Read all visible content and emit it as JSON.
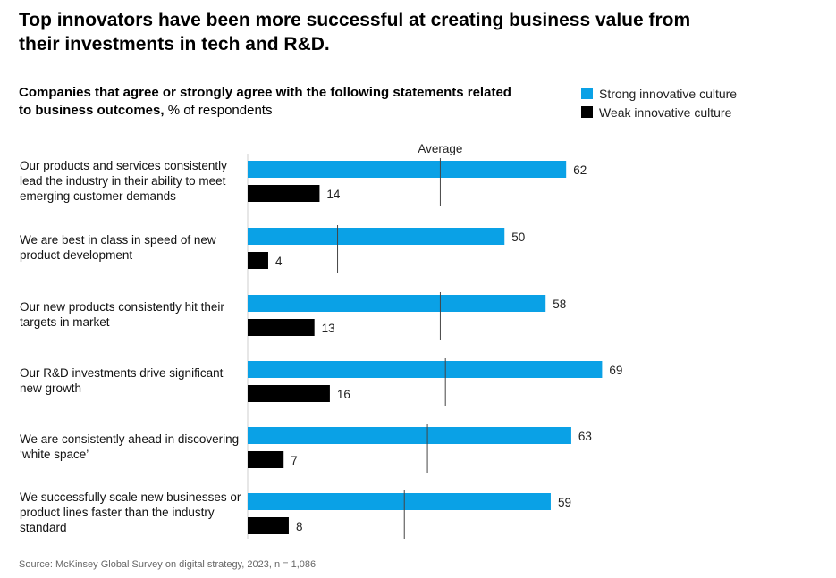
{
  "title": "Top innovators have been more successful at creating business value from their investments in tech and R&D.",
  "subtitle_bold": "Companies that agree or strongly agree with the following statements related to business outcomes,",
  "subtitle_normal": " % of respondents",
  "legend": {
    "strong": "Strong innovative culture",
    "weak": "Weak innovative culture"
  },
  "colors": {
    "strong": "#0aa1e6",
    "weak": "#000000",
    "average": "#444444"
  },
  "source": "Source: McKinsey Global Survey on digital strategy, 2023, n = 1,086",
  "chart_data": {
    "type": "bar",
    "orientation": "horizontal",
    "title": "Companies that agree or strongly agree with the following statements related to business outcomes, % of respondents",
    "average_label": "Average",
    "categories": [
      "Our products and services consistently lead the industry in their ability to meet emerging customer demands",
      "We are best in class in speed of new product development",
      "Our new products consistently hit their targets in market",
      "Our R&D investments drive significant new growth",
      "We are consistently ahead in discovering ‘white space’",
      "We successfully scale new businesses or product lines faster than the industry standard"
    ],
    "series": [
      {
        "name": "Strong innovative culture",
        "values": [
          62,
          50,
          58,
          69,
          63,
          59
        ]
      },
      {
        "name": "Weak innovative culture",
        "values": [
          14,
          4,
          13,
          16,
          7,
          8
        ]
      }
    ],
    "averages": [
      37.5,
      17.5,
      37.5,
      38.5,
      35,
      30.5
    ],
    "xlim": [
      0,
      70
    ]
  }
}
